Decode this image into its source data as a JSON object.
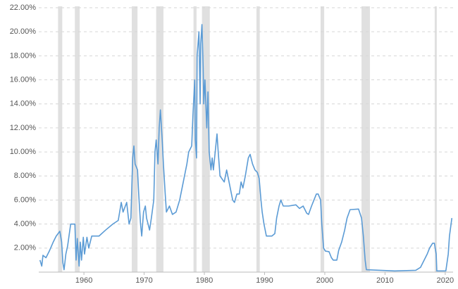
{
  "chart_data": {
    "type": "line",
    "x": [
      1952.7,
      1953.0,
      1953.2,
      1953.7,
      1954.3,
      1954.9,
      1955.4,
      1956.0,
      1956.3,
      1956.5,
      1956.7,
      1957.0,
      1957.3,
      1957.8,
      1958.5,
      1958.7,
      1958.9,
      1959.2,
      1959.4,
      1959.6,
      1959.9,
      1960.1,
      1960.5,
      1960.8,
      1961.3,
      1962.5,
      1963.6,
      1964.8,
      1965.7,
      1966.2,
      1966.5,
      1967.1,
      1967.5,
      1967.8,
      1968.1,
      1968.3,
      1968.5,
      1968.9,
      1969.1,
      1969.4,
      1969.6,
      1969.9,
      1970.2,
      1970.4,
      1970.9,
      1971.2,
      1971.6,
      1971.8,
      1972.0,
      1972.3,
      1972.5,
      1972.7,
      1973.0,
      1973.2,
      1973.5,
      1973.7,
      1974.2,
      1974.7,
      1975.3,
      1975.9,
      1976.5,
      1977.1,
      1977.4,
      1977.9,
      1978.1,
      1978.4,
      1978.5,
      1978.7,
      1978.8,
      1979.1,
      1979.3,
      1979.4,
      1979.6,
      1979.8,
      1979.9,
      1980.1,
      1980.4,
      1980.6,
      1980.8,
      1981.1,
      1981.3,
      1981.5,
      1981.8,
      1982.1,
      1982.3,
      1982.6,
      1983.3,
      1983.7,
      1984.1,
      1984.7,
      1985.0,
      1985.4,
      1985.8,
      1986.1,
      1986.4,
      1986.8,
      1987.3,
      1987.6,
      1988.0,
      1988.4,
      1988.8,
      1989.1,
      1989.4,
      1989.6,
      1989.9,
      1990.3,
      1991.2,
      1991.7,
      1992.0,
      1992.4,
      1992.7,
      1993.1,
      1994.0,
      1995.2,
      1995.8,
      1996.4,
      1997.0,
      1997.3,
      1997.8,
      1998.2,
      1998.6,
      1998.9,
      1999.3,
      1999.5,
      1999.8,
      2000.1,
      2000.7,
      2001.1,
      2001.4,
      2002.0,
      2002.3,
      2002.8,
      2003.3,
      2003.7,
      2004.2,
      2005.6,
      2006.1,
      2006.4,
      2006.7,
      2006.9,
      2009.2,
      2011.6,
      2015.1,
      2015.9,
      2016.5,
      2017.0,
      2017.4,
      2017.9,
      2018.2,
      2018.5,
      2018.6,
      2020.1,
      2020.5,
      2020.7,
      2021.1
    ],
    "series": [
      {
        "color": "#5b9bd5",
        "values": [
          1.0,
          0.5,
          1.4,
          1.2,
          1.8,
          2.5,
          3.0,
          3.4,
          2.5,
          0.8,
          0.2,
          1.5,
          2.2,
          4.0,
          4.0,
          1.0,
          2.8,
          0.5,
          2.5,
          1.0,
          2.9,
          1.5,
          2.9,
          2.0,
          3.0,
          3.0,
          3.5,
          4.0,
          4.3,
          5.8,
          5.0,
          5.8,
          4.0,
          4.5,
          9.5,
          10.5,
          9.0,
          8.5,
          6.5,
          4.0,
          3.0,
          5.0,
          5.5,
          4.5,
          3.5,
          4.5,
          6.0,
          10.0,
          11.0,
          9.0,
          12.0,
          13.5,
          11.0,
          9.0,
          6.5,
          5.0,
          5.5,
          4.8,
          5.0,
          6.0,
          7.5,
          9.0,
          10.0,
          10.5,
          13.0,
          16.0,
          11.0,
          9.5,
          18.0,
          20.0,
          14.0,
          19.0,
          20.6,
          17.0,
          14.0,
          16.0,
          12.0,
          15.0,
          10.0,
          8.5,
          9.5,
          8.5,
          10.0,
          11.5,
          10.0,
          8.0,
          7.5,
          8.5,
          7.5,
          6.0,
          5.8,
          6.5,
          6.5,
          7.5,
          7.0,
          8.0,
          9.5,
          9.8,
          9.0,
          8.5,
          8.3,
          7.8,
          6.0,
          5.0,
          4.0,
          3.0,
          3.0,
          3.2,
          4.5,
          5.5,
          6.0,
          5.5,
          5.5,
          5.6,
          5.3,
          5.5,
          4.9,
          4.8,
          5.5,
          6.0,
          6.5,
          6.5,
          6.0,
          4.0,
          2.0,
          1.75,
          1.7,
          1.2,
          1.0,
          1.0,
          1.8,
          2.5,
          3.5,
          4.5,
          5.2,
          5.25,
          4.5,
          3.0,
          1.0,
          0.2,
          0.15,
          0.1,
          0.15,
          0.4,
          1.0,
          1.5,
          2.0,
          2.4,
          2.4,
          1.5,
          0.1,
          0.1,
          1.5,
          3.0,
          4.5
        ]
      }
    ],
    "recessions": [
      [
        1955.7,
        1956.4
      ],
      [
        1958.5,
        1959.3
      ],
      [
        1967.95,
        1968.9
      ],
      [
        1972.0,
        1973.2
      ],
      [
        1978.2,
        1978.7
      ],
      [
        1979.6,
        1980.9
      ],
      [
        1988.65,
        1989.2
      ],
      [
        1999.3,
        1999.9
      ],
      [
        2006.1,
        2007.5
      ],
      [
        2018.25,
        2018.6
      ]
    ],
    "recession_color": "#e0e0e0",
    "xlim": [
      1952.5,
      2021.3
    ],
    "xticks": [
      1960,
      1970,
      1980,
      1990,
      2000,
      2010,
      2020
    ],
    "ylim": [
      0,
      22
    ],
    "yticks": [
      {
        "value": 2,
        "label": "2.00%"
      },
      {
        "value": 4,
        "label": "4.00%"
      },
      {
        "value": 6,
        "label": "6.00%"
      },
      {
        "value": 8,
        "label": "8.00%"
      },
      {
        "value": 10,
        "label": "10.00%"
      },
      {
        "value": 12,
        "label": "12.00%"
      },
      {
        "value": 14,
        "label": "14.00%"
      },
      {
        "value": 16,
        "label": "16.00%"
      },
      {
        "value": 18,
        "label": "18.00%"
      },
      {
        "value": 20,
        "label": "20.00%"
      },
      {
        "value": 22,
        "label": "22.00%"
      }
    ],
    "grid": true
  }
}
